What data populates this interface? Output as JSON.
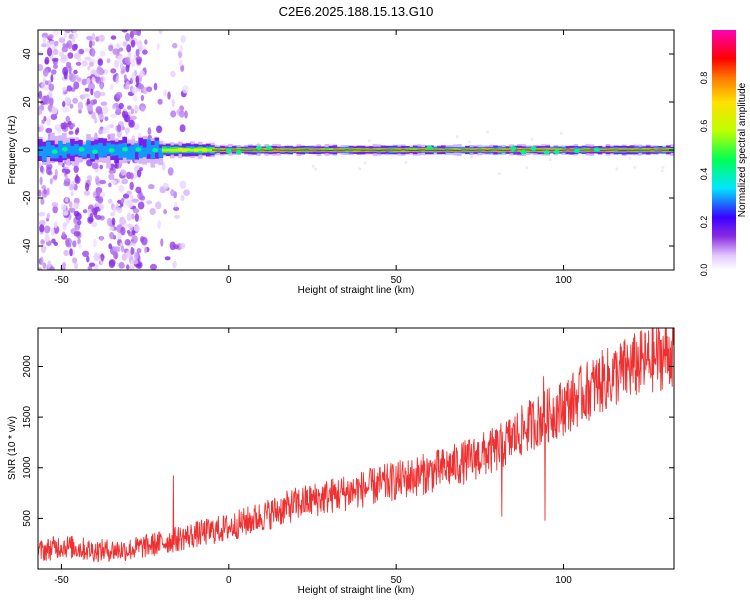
{
  "title": "C2E6.2025.188.15.13.G10",
  "chart_data": [
    {
      "type": "heatmap",
      "title": "C2E6.2025.188.15.13.G10",
      "xlabel": "Height of straight line (km)",
      "ylabel": "Frequency (Hz)",
      "xlim": [
        -57,
        133
      ],
      "ylim": [
        -50,
        50
      ],
      "xticks": [
        -50,
        0,
        50,
        100
      ],
      "yticks": [
        -40,
        -20,
        0,
        20,
        40
      ],
      "xtick_labels": [
        "-50",
        "0",
        "50",
        "100"
      ],
      "ytick_labels": [
        "-40",
        "-20",
        "0",
        "20",
        "40"
      ],
      "colorbar": {
        "label": "Normalized spectral amplitude",
        "range": [
          0,
          1
        ],
        "ticks": [
          0.0,
          0.2,
          0.4,
          0.6,
          0.8
        ],
        "tick_labels": [
          "0.0",
          "0.2",
          "0.4",
          "0.6",
          "0.8"
        ],
        "colors": [
          "#ffffff",
          "#e4c8ff",
          "#8a2be2",
          "#3a00ff",
          "#00e6ff",
          "#00ff55",
          "#bfff00",
          "#ffe000",
          "#ff7a00",
          "#ff0000",
          "#ff00b4"
        ]
      },
      "ridge": {
        "description_values": "dominant frequency near 0 Hz",
        "frequency_hz": 0,
        "segments": [
          {
            "x_start": -57,
            "x_end": -20,
            "peak_amplitude": 0.35,
            "spread_hz": 5
          },
          {
            "x_start": -20,
            "x_end": -5,
            "peak_amplitude": 0.65,
            "spread_hz": 3
          },
          {
            "x_start": -5,
            "x_end": 133,
            "peak_amplitude": 0.9,
            "spread_hz": 2
          }
        ],
        "scatter_bands_x": [
          -54,
          -47,
          -40,
          -33,
          -28
        ]
      }
    },
    {
      "type": "line",
      "xlabel": "Height of straight line (km)",
      "ylabel": "SNR (10 * v/v)",
      "xlim": [
        -57,
        133
      ],
      "ylim": [
        0,
        2380
      ],
      "xticks": [
        -50,
        0,
        50,
        100
      ],
      "yticks": [
        500,
        1000,
        1500,
        2000
      ],
      "xtick_labels": [
        "-50",
        "0",
        "50",
        "100"
      ],
      "ytick_labels": [
        "500",
        "1000",
        "1500",
        "2000"
      ],
      "color": "#f03030",
      "series": [
        {
          "x": [
            -57,
            -50,
            -40,
            -30,
            -20,
            -10,
            0,
            10,
            20,
            30,
            40,
            50,
            60,
            70,
            80,
            90,
            100,
            110,
            120,
            133
          ],
          "y": [
            170,
            230,
            180,
            190,
            260,
            340,
            410,
            520,
            640,
            720,
            790,
            870,
            950,
            1050,
            1180,
            1420,
            1600,
            1820,
            1990,
            2150
          ]
        }
      ],
      "spikes": [
        {
          "x": -16.5,
          "y": 920
        },
        {
          "x": 94,
          "y": 1900
        },
        {
          "x": 81.5,
          "y": 520
        },
        {
          "x": 94.5,
          "y": 480
        }
      ]
    }
  ]
}
